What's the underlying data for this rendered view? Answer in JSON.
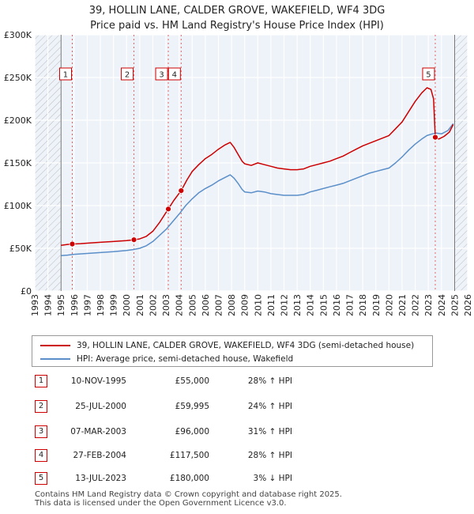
{
  "title_line1": "39, HOLLIN LANE, CALDER GROVE, WAKEFIELD, WF4 3DG",
  "title_line2": "Price paid vs. HM Land Registry's House Price Index (HPI)",
  "colors": {
    "red": "#cc0000",
    "blue": "#5b8fc9",
    "hatch": "#bbbbbb",
    "grid": "#dde3ee",
    "bg": "#eef2f9"
  },
  "chart_data": {
    "type": "line",
    "xlim": [
      1993,
      2026
    ],
    "ylim": [
      0,
      300000
    ],
    "y_ticks": [
      {
        "value": 0,
        "label": "£0"
      },
      {
        "value": 50000,
        "label": "£50K"
      },
      {
        "value": 100000,
        "label": "£100K"
      },
      {
        "value": 150000,
        "label": "£150K"
      },
      {
        "value": 200000,
        "label": "£200K"
      },
      {
        "value": 250000,
        "label": "£250K"
      },
      {
        "value": 300000,
        "label": "£300K"
      }
    ],
    "x_ticks": [
      1993,
      1994,
      1995,
      1996,
      1997,
      1998,
      1999,
      2000,
      2001,
      2002,
      2003,
      2004,
      2005,
      2006,
      2007,
      2008,
      2009,
      2010,
      2011,
      2012,
      2013,
      2014,
      2015,
      2016,
      2017,
      2018,
      2019,
      2020,
      2021,
      2022,
      2023,
      2024,
      2025,
      2026
    ],
    "hatch_before": 1995.0,
    "hatch_after": 2025.0,
    "series": [
      {
        "name": "39, HOLLIN LANE, CALDER GROVE, WAKEFIELD, WF4 3DG (semi-detached house)",
        "color": "#cc0000",
        "points": [
          [
            1995.0,
            53500
          ],
          [
            1995.5,
            54500
          ],
          [
            1995.86,
            55000
          ],
          [
            1996.5,
            55500
          ],
          [
            1997.0,
            56000
          ],
          [
            1998.0,
            57000
          ],
          [
            1999.0,
            58000
          ],
          [
            2000.0,
            59000
          ],
          [
            2000.56,
            59995
          ],
          [
            2001.0,
            61000
          ],
          [
            2001.5,
            64000
          ],
          [
            2002.0,
            70000
          ],
          [
            2002.5,
            80000
          ],
          [
            2003.18,
            96000
          ],
          [
            2003.6,
            106000
          ],
          [
            2004.16,
            117500
          ],
          [
            2004.6,
            130000
          ],
          [
            2005.0,
            140000
          ],
          [
            2005.5,
            148000
          ],
          [
            2006.0,
            155000
          ],
          [
            2006.5,
            160000
          ],
          [
            2007.0,
            166000
          ],
          [
            2007.5,
            171000
          ],
          [
            2007.9,
            174000
          ],
          [
            2008.2,
            168000
          ],
          [
            2008.5,
            160000
          ],
          [
            2008.8,
            152000
          ],
          [
            2009.0,
            149000
          ],
          [
            2009.5,
            147000
          ],
          [
            2010.0,
            150000
          ],
          [
            2010.5,
            148000
          ],
          [
            2011.0,
            146000
          ],
          [
            2011.5,
            144000
          ],
          [
            2012.0,
            143000
          ],
          [
            2012.5,
            142000
          ],
          [
            2013.0,
            142000
          ],
          [
            2013.5,
            143000
          ],
          [
            2014.0,
            146000
          ],
          [
            2014.5,
            148000
          ],
          [
            2015.0,
            150000
          ],
          [
            2015.5,
            152000
          ],
          [
            2016.0,
            155000
          ],
          [
            2016.5,
            158000
          ],
          [
            2017.0,
            162000
          ],
          [
            2017.5,
            166000
          ],
          [
            2018.0,
            170000
          ],
          [
            2018.5,
            173000
          ],
          [
            2019.0,
            176000
          ],
          [
            2019.5,
            179000
          ],
          [
            2020.0,
            182000
          ],
          [
            2020.5,
            190000
          ],
          [
            2021.0,
            198000
          ],
          [
            2021.5,
            210000
          ],
          [
            2022.0,
            222000
          ],
          [
            2022.5,
            232000
          ],
          [
            2022.9,
            238000
          ],
          [
            2023.2,
            236000
          ],
          [
            2023.4,
            225000
          ],
          [
            2023.53,
            180000
          ],
          [
            2023.8,
            178000
          ],
          [
            2024.2,
            181000
          ],
          [
            2024.6,
            186000
          ],
          [
            2024.9,
            195000
          ]
        ]
      },
      {
        "name": "HPI: Average price, semi-detached house, Wakefield",
        "color": "#5b8fc9",
        "points": [
          [
            1995.0,
            41500
          ],
          [
            1995.5,
            42000
          ],
          [
            1996.0,
            43000
          ],
          [
            1997.0,
            44000
          ],
          [
            1998.0,
            45000
          ],
          [
            1999.0,
            46000
          ],
          [
            2000.0,
            47500
          ],
          [
            2000.5,
            48500
          ],
          [
            2001.0,
            50000
          ],
          [
            2001.5,
            53000
          ],
          [
            2002.0,
            58000
          ],
          [
            2002.5,
            65000
          ],
          [
            2003.0,
            72000
          ],
          [
            2003.5,
            81000
          ],
          [
            2004.0,
            90000
          ],
          [
            2004.5,
            100000
          ],
          [
            2005.0,
            108000
          ],
          [
            2005.5,
            115000
          ],
          [
            2006.0,
            120000
          ],
          [
            2006.5,
            124000
          ],
          [
            2007.0,
            129000
          ],
          [
            2007.5,
            133000
          ],
          [
            2007.9,
            136000
          ],
          [
            2008.2,
            132000
          ],
          [
            2008.5,
            126000
          ],
          [
            2008.8,
            119000
          ],
          [
            2009.0,
            116000
          ],
          [
            2009.5,
            115000
          ],
          [
            2010.0,
            117000
          ],
          [
            2010.5,
            116000
          ],
          [
            2011.0,
            114000
          ],
          [
            2011.5,
            113000
          ],
          [
            2012.0,
            112000
          ],
          [
            2012.5,
            112000
          ],
          [
            2013.0,
            112000
          ],
          [
            2013.5,
            113000
          ],
          [
            2014.0,
            116000
          ],
          [
            2014.5,
            118000
          ],
          [
            2015.0,
            120000
          ],
          [
            2015.5,
            122000
          ],
          [
            2016.0,
            124000
          ],
          [
            2016.5,
            126000
          ],
          [
            2017.0,
            129000
          ],
          [
            2017.5,
            132000
          ],
          [
            2018.0,
            135000
          ],
          [
            2018.5,
            138000
          ],
          [
            2019.0,
            140000
          ],
          [
            2019.5,
            142000
          ],
          [
            2020.0,
            144000
          ],
          [
            2020.5,
            150000
          ],
          [
            2021.0,
            157000
          ],
          [
            2021.5,
            165000
          ],
          [
            2022.0,
            172000
          ],
          [
            2022.5,
            178000
          ],
          [
            2022.9,
            182000
          ],
          [
            2023.3,
            184000
          ],
          [
            2023.6,
            185000
          ],
          [
            2024.0,
            184000
          ],
          [
            2024.5,
            188000
          ],
          [
            2024.9,
            196000
          ]
        ]
      }
    ],
    "transactions": [
      {
        "num": "1",
        "date": "10-NOV-1995",
        "x": 1995.86,
        "price_value": 55000,
        "price": "£55,000",
        "hpi": "28% ↑ HPI"
      },
      {
        "num": "2",
        "date": "25-JUL-2000",
        "x": 2000.56,
        "price_value": 59995,
        "price": "£59,995",
        "hpi": "24% ↑ HPI"
      },
      {
        "num": "3",
        "date": "07-MAR-2003",
        "x": 2003.18,
        "price_value": 96000,
        "price": "£96,000",
        "hpi": "31% ↑ HPI"
      },
      {
        "num": "4",
        "date": "27-FEB-2004",
        "x": 2004.16,
        "price_value": 117500,
        "price": "£117,500",
        "hpi": "28% ↑ HPI"
      },
      {
        "num": "5",
        "date": "13-JUL-2023",
        "x": 2023.53,
        "price_value": 180000,
        "price": "£180,000",
        "hpi": "3% ↓ HPI"
      }
    ]
  },
  "legend": {
    "red_label": "39, HOLLIN LANE, CALDER GROVE, WAKEFIELD, WF4 3DG (semi-detached house)",
    "blue_label": "HPI: Average price, semi-detached house, Wakefield"
  },
  "footer": {
    "line1": "Contains HM Land Registry data © Crown copyright and database right 2025.",
    "line2": "This data is licensed under the Open Government Licence v3.0."
  }
}
